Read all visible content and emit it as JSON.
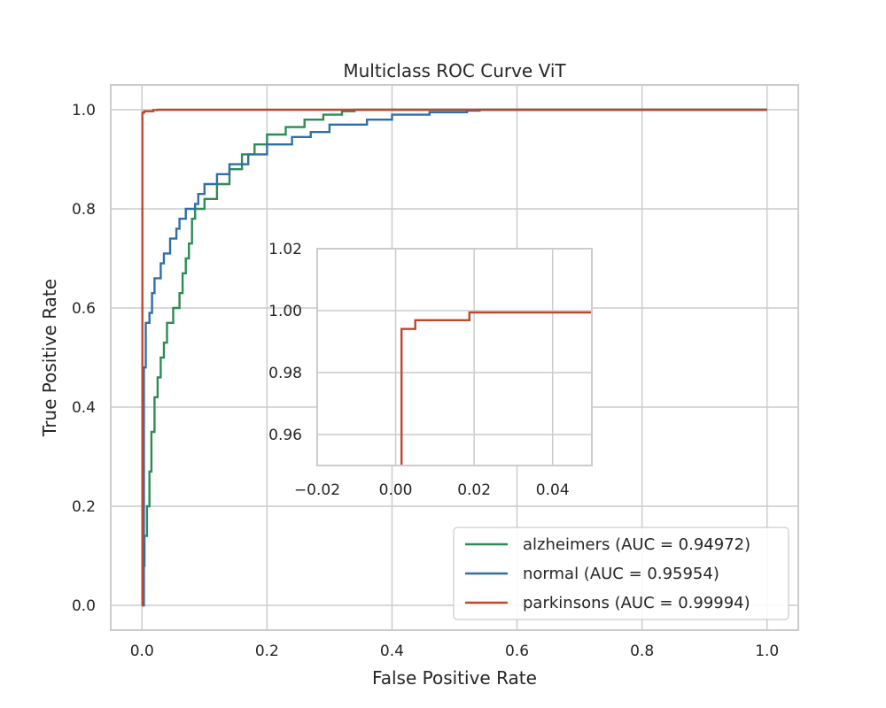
{
  "chart_data": {
    "type": "line",
    "title": "Multiclass ROC Curve ViT",
    "xlabel": "False Positive Rate",
    "ylabel": "True Positive Rate",
    "xlim": [
      -0.05,
      1.05
    ],
    "ylim": [
      -0.05,
      1.05
    ],
    "xticks": [
      "0.0",
      "0.2",
      "0.4",
      "0.6",
      "0.8",
      "1.0"
    ],
    "yticks": [
      "0.0",
      "0.2",
      "0.4",
      "0.6",
      "0.8",
      "1.0"
    ],
    "grid": true,
    "legend_position": "lower-right",
    "series": [
      {
        "name": "alzheimers (AUC = 0.94972)",
        "color": "#2e8b57",
        "points": [
          [
            0.0,
            0.0
          ],
          [
            0.002,
            0.08
          ],
          [
            0.004,
            0.14
          ],
          [
            0.008,
            0.2
          ],
          [
            0.012,
            0.27
          ],
          [
            0.015,
            0.35
          ],
          [
            0.02,
            0.42
          ],
          [
            0.025,
            0.46
          ],
          [
            0.03,
            0.5
          ],
          [
            0.035,
            0.53
          ],
          [
            0.04,
            0.57
          ],
          [
            0.05,
            0.6
          ],
          [
            0.06,
            0.63
          ],
          [
            0.065,
            0.67
          ],
          [
            0.07,
            0.7
          ],
          [
            0.075,
            0.73
          ],
          [
            0.08,
            0.78
          ],
          [
            0.085,
            0.8
          ],
          [
            0.1,
            0.82
          ],
          [
            0.12,
            0.85
          ],
          [
            0.14,
            0.88
          ],
          [
            0.16,
            0.91
          ],
          [
            0.18,
            0.93
          ],
          [
            0.2,
            0.95
          ],
          [
            0.23,
            0.965
          ],
          [
            0.26,
            0.98
          ],
          [
            0.29,
            0.99
          ],
          [
            0.32,
            0.997
          ],
          [
            0.34,
            1.0
          ],
          [
            1.0,
            1.0
          ]
        ]
      },
      {
        "name": "normal (AUC = 0.95954)",
        "color": "#2f6fa8",
        "points": [
          [
            0.0,
            0.0
          ],
          [
            0.003,
            0.48
          ],
          [
            0.006,
            0.57
          ],
          [
            0.012,
            0.59
          ],
          [
            0.016,
            0.63
          ],
          [
            0.02,
            0.66
          ],
          [
            0.03,
            0.69
          ],
          [
            0.035,
            0.71
          ],
          [
            0.045,
            0.74
          ],
          [
            0.055,
            0.76
          ],
          [
            0.06,
            0.78
          ],
          [
            0.07,
            0.8
          ],
          [
            0.085,
            0.81
          ],
          [
            0.09,
            0.83
          ],
          [
            0.1,
            0.85
          ],
          [
            0.12,
            0.87
          ],
          [
            0.14,
            0.89
          ],
          [
            0.17,
            0.91
          ],
          [
            0.2,
            0.93
          ],
          [
            0.24,
            0.945
          ],
          [
            0.27,
            0.955
          ],
          [
            0.3,
            0.97
          ],
          [
            0.36,
            0.98
          ],
          [
            0.4,
            0.99
          ],
          [
            0.46,
            0.995
          ],
          [
            0.52,
            0.998
          ],
          [
            0.54,
            1.0
          ],
          [
            1.0,
            1.0
          ]
        ]
      },
      {
        "name": "parkinsons (AUC = 0.99994)",
        "color": "#c0452e",
        "points": [
          [
            0.0,
            0.0
          ],
          [
            0.0006,
            0.9941
          ],
          [
            0.0036,
            0.9941
          ],
          [
            0.0036,
            0.9969
          ],
          [
            0.018,
            0.9969
          ],
          [
            0.018,
            0.9994
          ],
          [
            0.025,
            1.0
          ],
          [
            1.0,
            1.0
          ]
        ]
      }
    ],
    "inset": {
      "xlim": [
        -0.02,
        0.05
      ],
      "ylim": [
        0.95,
        1.02
      ],
      "xticks": [
        "−0.02",
        "0.00",
        "0.02",
        "0.04"
      ],
      "yticks": [
        "0.96",
        "0.98",
        "1.00",
        "1.02"
      ],
      "series": [
        {
          "color": "#c0452e",
          "points": [
            [
              0.0015,
              0.95
            ],
            [
              0.0015,
              0.9941
            ],
            [
              0.005,
              0.9941
            ],
            [
              0.005,
              0.9969
            ],
            [
              0.0188,
              0.9969
            ],
            [
              0.0188,
              0.9994
            ],
            [
              0.05,
              0.9994
            ]
          ]
        }
      ]
    }
  }
}
